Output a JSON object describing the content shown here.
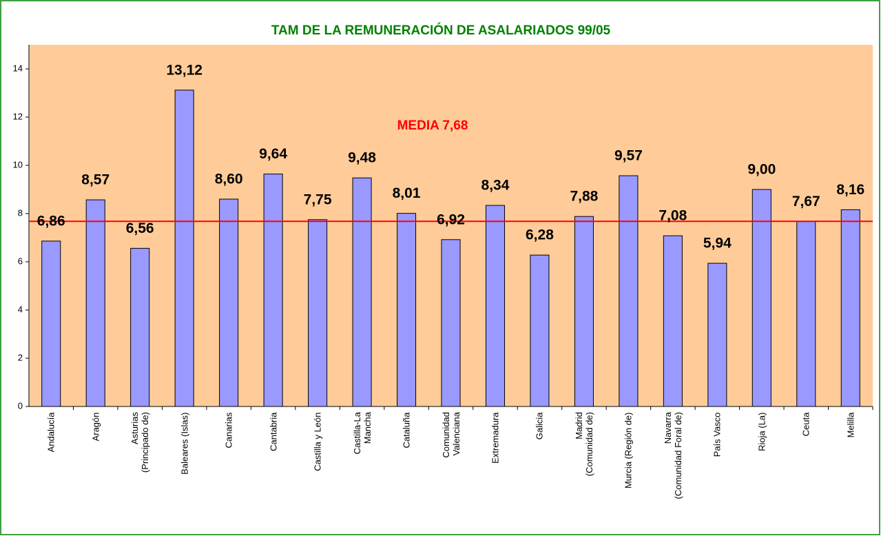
{
  "chart_data": {
    "type": "bar",
    "title": "TAM DE LA REMUNERACIÓN DE ASALARIADOS 99/05",
    "categories": [
      "Andalucía",
      "Aragón",
      "Asturias\n(Principado de)",
      "Baleares (Islas)",
      "Canarias",
      "Cantabria",
      "Castilla y León",
      "Castilla-La\nMancha",
      "Cataluña",
      "Comunidad\nValenciana",
      "Extremadura",
      "Galicia",
      "Madrid\n(Comunidad de)",
      "Murcia (Región de)",
      "Navarra\n(Comunidad Foral de)",
      "País Vasco",
      "Rioja (La)",
      "Ceuta",
      "Melilla"
    ],
    "values": [
      6.86,
      8.57,
      6.56,
      13.12,
      8.6,
      9.64,
      7.75,
      9.48,
      8.01,
      6.92,
      8.34,
      6.28,
      7.88,
      9.57,
      7.08,
      5.94,
      9.0,
      7.67,
      8.16
    ],
    "value_labels": [
      "6,86",
      "8,57",
      "6,56",
      "13,12",
      "8,60",
      "9,64",
      "7,75",
      "9,48",
      "8,01",
      "6,92",
      "8,34",
      "6,28",
      "7,88",
      "9,57",
      "7,08",
      "5,94",
      "9,00",
      "7,67",
      "8,16"
    ],
    "color": "#9999ff",
    "background": "#ffcc99",
    "mean": {
      "value": 7.68,
      "label": "MEDIA 7,68",
      "color": "#ff0000"
    },
    "ylim": [
      0,
      15
    ],
    "yticks": [
      0,
      2,
      4,
      6,
      8,
      10,
      12,
      14
    ],
    "grid": false
  }
}
